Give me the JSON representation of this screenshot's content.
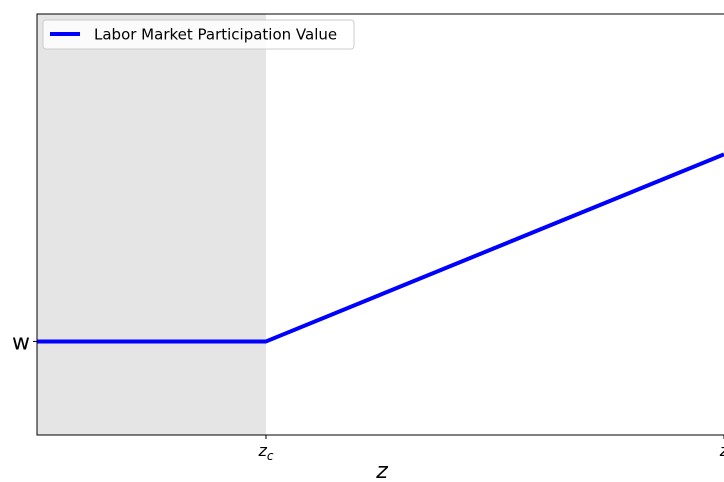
{
  "chart_data": {
    "type": "line",
    "title": "",
    "xlabel": "z",
    "ylabel": "",
    "xlim": [
      0,
      3
    ],
    "ylim": [
      0,
      4.5
    ],
    "grid": false,
    "legend": {
      "placement": "top-left",
      "entries": [
        "Labor Market Participation Value"
      ]
    },
    "shaded_region": {
      "x_start": 0,
      "x_end": 1,
      "color": "#e5e5e5"
    },
    "x_ticks": [
      {
        "value": 1,
        "label": "z",
        "subscript": "c"
      },
      {
        "value": 3,
        "label": "z",
        "subscript": ""
      }
    ],
    "y_ticks": [
      {
        "value": 1,
        "label": "w"
      }
    ],
    "series": [
      {
        "name": "Labor Market Participation Value",
        "color": "#0000ff",
        "x": [
          0,
          1,
          3
        ],
        "y": [
          1,
          1,
          3
        ]
      }
    ]
  }
}
